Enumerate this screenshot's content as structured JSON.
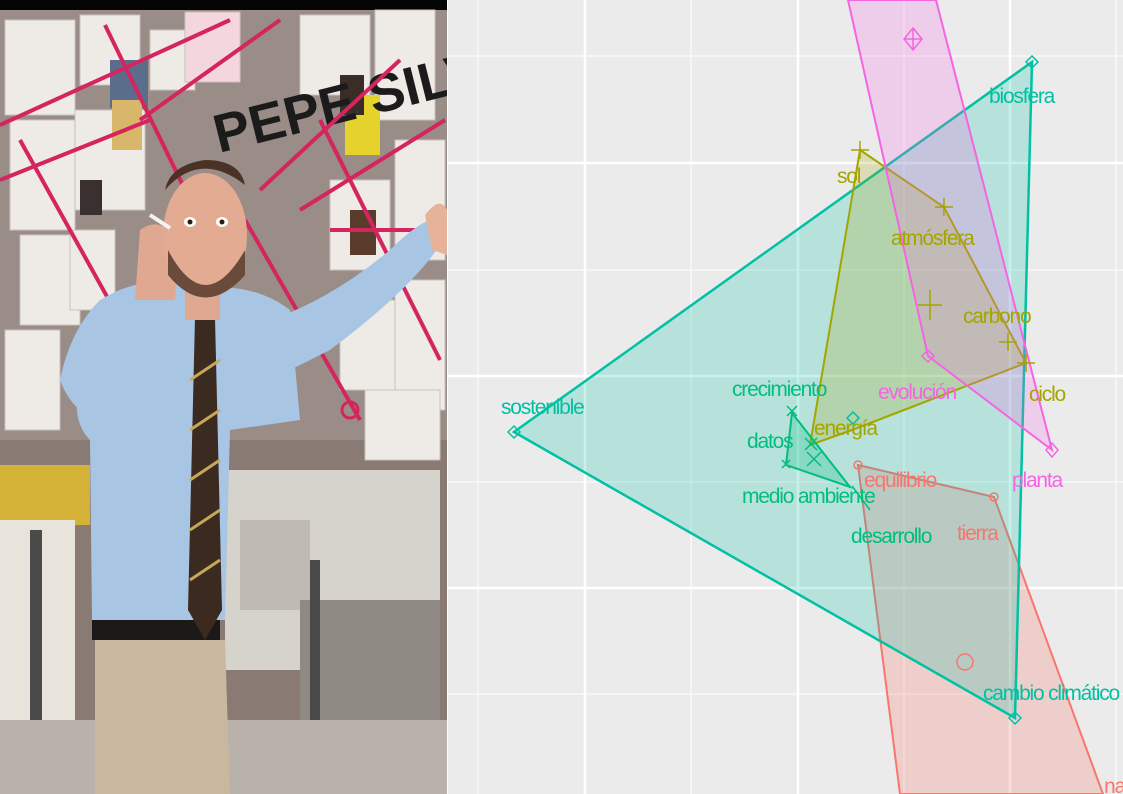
{
  "meme": {
    "wall_text": "PEPE SILVIA"
  },
  "plot": {
    "colors": {
      "background": "#ebebeb",
      "grid": "#ffffff",
      "red": "#f8766d",
      "olive": "#a3a500",
      "green": "#00bf7d",
      "teal": "#00c1a3",
      "pink": "#f564e3"
    },
    "labels": [
      {
        "text": "biosfera",
        "group": "teal"
      },
      {
        "text": "sol",
        "group": "olive"
      },
      {
        "text": "atmósfera",
        "group": "olive"
      },
      {
        "text": "carbono",
        "group": "olive"
      },
      {
        "text": "ciclo",
        "group": "olive"
      },
      {
        "text": "evolución",
        "group": "pink"
      },
      {
        "text": "planta",
        "group": "pink"
      },
      {
        "text": "sostenible",
        "group": "teal"
      },
      {
        "text": "crecimiento",
        "group": "green"
      },
      {
        "text": "datos",
        "group": "green"
      },
      {
        "text": "energía",
        "group": "olive"
      },
      {
        "text": "medio ambiente",
        "group": "green"
      },
      {
        "text": "equilibrio",
        "group": "red"
      },
      {
        "text": "desarrollo",
        "group": "green"
      },
      {
        "text": "tierra",
        "group": "red"
      },
      {
        "text": "cambio climático",
        "group": "teal"
      },
      {
        "text": "na",
        "group": "red"
      }
    ]
  }
}
